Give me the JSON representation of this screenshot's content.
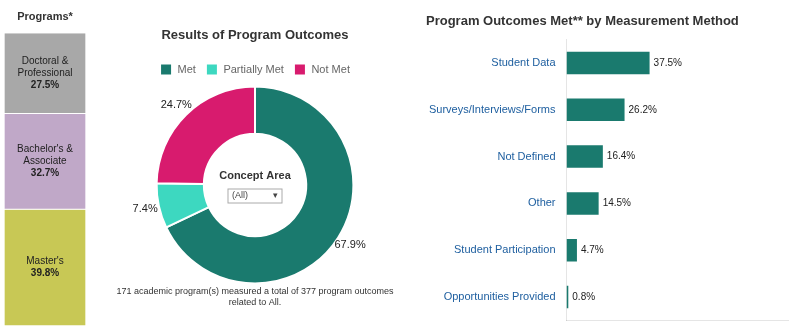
{
  "chart_data": [
    {
      "type": "bar",
      "stacked": true,
      "title": "Programs*",
      "categories": [
        null
      ],
      "series": [
        {
          "name": "Doctoral & Professional",
          "color": "#a8a8a8",
          "values": [
            27.5
          ],
          "value_labels": [
            "27.5%"
          ]
        },
        {
          "name": "Bachelor's & Associate",
          "color": "#c0a8c8",
          "values": [
            32.7
          ],
          "value_labels": [
            "32.7%"
          ]
        },
        {
          "name": "Master's",
          "color": "#c8c855",
          "values": [
            39.8
          ],
          "value_labels": [
            "39.8%"
          ]
        }
      ],
      "ylim": [
        0,
        100
      ],
      "tick_labels": false,
      "data_labels": true,
      "grid": false
    },
    {
      "type": "doughnut",
      "title": "Results of Program Outcomes",
      "subtitle": [
        "171 academic program(s) measured a total of 377 program outcomes",
        "related to All."
      ],
      "annotations": [
        "Concept Area",
        "(All)          ▾"
      ],
      "categories": [
        "Met",
        "Partially Met",
        "Not Met"
      ],
      "values": [
        67.9,
        7.4,
        24.7
      ],
      "value_labels": [
        "67.9%",
        "7.4%",
        "24.7%"
      ],
      "colors": [
        "#1a7a6e",
        "#3dd8c0",
        "#d81b6e"
      ],
      "legend": "top",
      "data_labels": true
    },
    {
      "type": "bar",
      "orientation": "horizontal",
      "title": "Program Outcomes Met** by Measurement Method",
      "categories": [
        "Student Data",
        "Surveys/Interviews/Forms",
        "Not Defined",
        "Other",
        "Student Participation",
        "Opportunities Provided"
      ],
      "values": [
        37.5,
        26.2,
        16.4,
        14.5,
        4.7,
        0.8
      ],
      "value_labels": [
        "37.5%",
        "26.2%",
        "16.4%",
        "14.5%",
        "4.7%",
        "0.8%"
      ],
      "color": "#1a7a6e",
      "xlim": [
        0,
        100
      ],
      "tick_labels": "y",
      "data_labels": true,
      "grid": false
    }
  ]
}
